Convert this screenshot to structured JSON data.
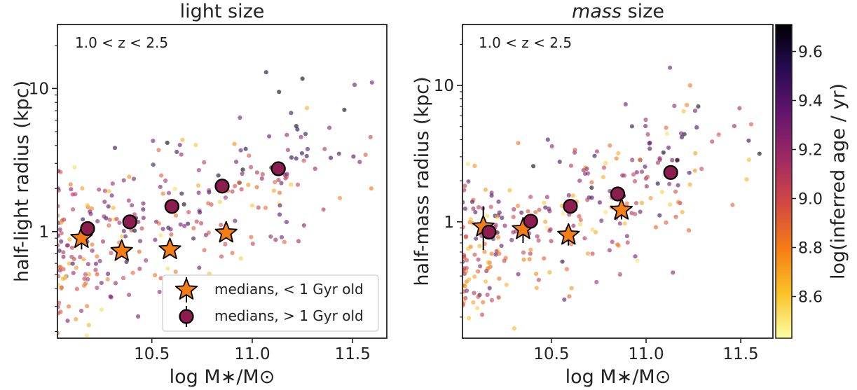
{
  "figure": {
    "colorbar": {
      "label": "log(inferred age / yr)",
      "range": [
        8.43,
        9.71
      ],
      "ticks": [
        "8.6",
        "8.8",
        "9.0",
        "9.2",
        "9.4",
        "9.6"
      ],
      "tick_values": [
        8.6,
        8.8,
        9.0,
        9.2,
        9.4,
        9.6
      ],
      "colormap": [
        "#fcffa4",
        "#fac228",
        "#f57d15",
        "#d44842",
        "#9f2a63",
        "#65156e",
        "#280b53",
        "#000004"
      ]
    },
    "legend": {
      "star_label": "medians, < 1 Gyr old",
      "circle_label": "medians, > 1 Gyr old"
    },
    "colors": {
      "star_fill": "#f57d15",
      "circle_fill": "#8c1d4e",
      "marker_edge": "#000000"
    }
  },
  "chart_data": [
    {
      "type": "scatter",
      "title": "light size",
      "annotation": "1.0 < z < 2.5",
      "xlabel": "log M∗/M⊙",
      "ylabel": "half-light radius (kpc)",
      "xlim": [
        10.03,
        11.67
      ],
      "ylim": [
        0.18,
        28
      ],
      "yscale": "log",
      "xticks": [
        "10.5",
        "11.0",
        "11.5"
      ],
      "xtick_values": [
        10.5,
        11.0,
        11.5
      ],
      "yticks": [
        "1",
        "10"
      ],
      "ytick_values": [
        1,
        10
      ],
      "legend_position": "lower-right",
      "scatter_seed": 7,
      "series": [
        {
          "name": "medians, < 1 Gyr old",
          "marker": "star",
          "x": [
            10.15,
            10.35,
            10.59,
            10.87
          ],
          "y": [
            0.9,
            0.73,
            0.75,
            0.98
          ],
          "yerr": [
            [
              0.15,
              0.06,
              0.06,
              0.08
            ],
            [
              0.12,
              0.05,
              0.06,
              0.07
            ]
          ]
        },
        {
          "name": "medians, > 1 Gyr old",
          "marker": "circle",
          "x": [
            10.18,
            10.39,
            10.6,
            10.85,
            11.13
          ],
          "y": [
            1.05,
            1.17,
            1.5,
            2.08,
            2.75
          ],
          "yerr": [
            [
              0.1,
              0.08,
              0.1,
              0.15,
              0.25
            ],
            [
              0.1,
              0.08,
              0.1,
              0.15,
              0.25
            ]
          ]
        }
      ]
    },
    {
      "type": "scatter",
      "title": "mass size",
      "annotation": "1.0 < z < 2.5",
      "xlabel": "log M∗/M⊙",
      "ylabel": "half-mass radius (kpc)",
      "xlim": [
        10.03,
        11.67
      ],
      "ylim": [
        0.14,
        28
      ],
      "yscale": "log",
      "xticks": [
        "10.5",
        "11.0",
        "11.5"
      ],
      "xtick_values": [
        10.5,
        11.0,
        11.5
      ],
      "yticks": [
        "1",
        "10"
      ],
      "ytick_values": [
        1,
        10
      ],
      "scatter_seed": 23,
      "series": [
        {
          "name": "medians, < 1 Gyr old",
          "marker": "star",
          "x": [
            10.14,
            10.35,
            10.59,
            10.87
          ],
          "y": [
            0.92,
            0.88,
            0.8,
            1.22
          ],
          "yerr": [
            [
              0.3,
              0.18,
              0.13,
              0.18
            ],
            [
              0.38,
              0.2,
              0.15,
              0.2
            ]
          ]
        },
        {
          "name": "medians, > 1 Gyr old",
          "marker": "circle",
          "x": [
            10.17,
            10.39,
            10.6,
            10.85,
            11.13
          ],
          "y": [
            0.84,
            1.01,
            1.3,
            1.6,
            2.3
          ],
          "yerr": [
            [
              0.06,
              0.08,
              0.1,
              0.12,
              0.25
            ],
            [
              0.06,
              0.08,
              0.1,
              0.12,
              0.25
            ]
          ]
        }
      ]
    }
  ]
}
